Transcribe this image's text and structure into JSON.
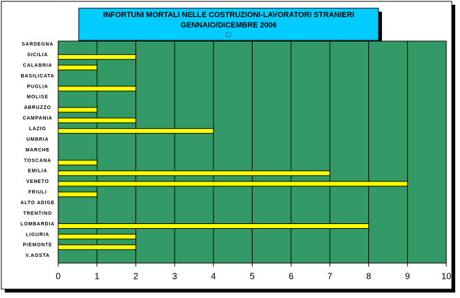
{
  "chart_data": {
    "type": "hbar",
    "title": [
      "INFORTUNI MORTALI NELLE COSTRUZIONI-LAVORATORI STRANIERI",
      "GENNAIO/DICEMBRE  2006",
      "□"
    ],
    "categories": [
      "SARDEGNA",
      "SICILIA",
      "CALABRIA",
      "BASILICATA",
      "PUGLIA",
      "MOLISE",
      "ABRUZZO",
      "CAMPANIA",
      "LAZIO",
      "UMBRIA",
      "MARCHE",
      "TOSCANA",
      "EMILIA",
      "VENETO",
      "FRIULI",
      "ALTO ADIGE",
      "TRENTINO",
      "LOMBARDIA",
      "LIGURIA",
      "PIEMONTE",
      "V.AOSTA"
    ],
    "values": [
      0,
      2,
      1,
      0,
      2,
      0,
      1,
      2,
      4,
      0,
      0,
      1,
      7,
      9,
      1,
      0,
      0,
      8,
      2,
      2,
      0
    ],
    "color": "#ffff00",
    "plot_color": "#339966",
    "title_color": "#00ccff",
    "xlim": [
      0,
      10
    ],
    "xticks": [
      0,
      1,
      2,
      3,
      4,
      5,
      6,
      7,
      8,
      9,
      10
    ],
    "grid": true
  }
}
